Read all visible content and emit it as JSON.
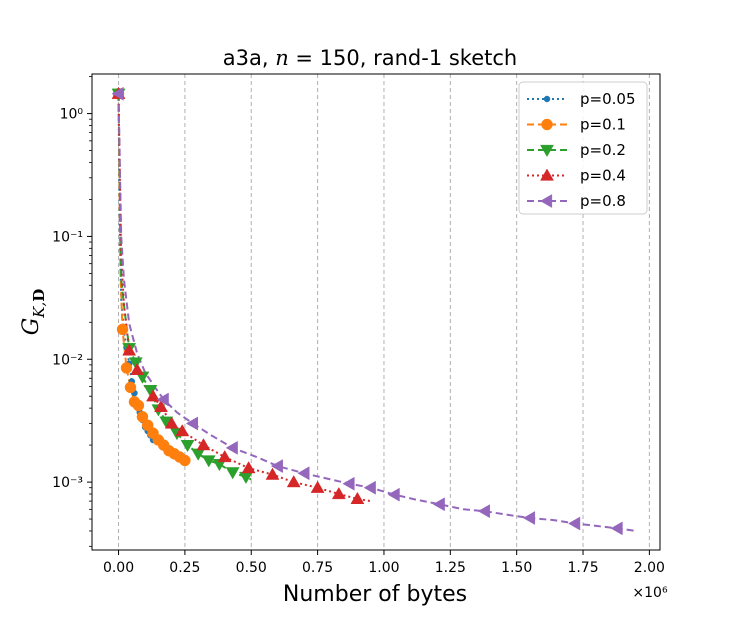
{
  "chart_data": {
    "type": "line",
    "title": "a3a, n = 150, rand-1 sketch",
    "title_parts": {
      "prefix": "a3a, ",
      "var": "n",
      "suffix": " = 150, rand-1 sketch"
    },
    "xlabel": "Number of bytes",
    "x_offset_text": "×10⁶",
    "ylabel": "G_{K,D}",
    "ylabel_parts": {
      "main": "G",
      "sub_k": "K,",
      "sub_d": "D"
    },
    "xscale": "linear",
    "yscale": "log",
    "xlim": [
      -0.1,
      2.04
    ],
    "ylim": [
      0.00028,
      2.1
    ],
    "xticks": [
      0.0,
      0.25,
      0.5,
      0.75,
      1.0,
      1.25,
      1.5,
      1.75,
      2.0
    ],
    "xtick_labels": [
      "0.00",
      "0.25",
      "0.50",
      "0.75",
      "1.00",
      "1.25",
      "1.50",
      "1.75",
      "2.00"
    ],
    "yticks": [
      0.001,
      0.01,
      0.1,
      1
    ],
    "ytick_labels": [
      "10⁻³",
      "10⁻²",
      "10⁻¹",
      "10⁰"
    ],
    "grid": "x-vertical-dashed",
    "legend_position": "top-right",
    "series": [
      {
        "name": "p=0.05",
        "color": "#1f77b4",
        "linestyle": "dotted",
        "marker": "circle-small",
        "x": [
          0,
          0.005,
          0.01,
          0.02,
          0.03,
          0.04,
          0.05,
          0.06,
          0.07,
          0.08,
          0.09,
          0.1,
          0.11,
          0.12,
          0.13
        ],
        "y": [
          1.45,
          0.09,
          0.031,
          0.017,
          0.0125,
          0.0092,
          0.0066,
          0.0053,
          0.0044,
          0.0037,
          0.0032,
          0.0028,
          0.0026,
          0.0024,
          0.0022
        ]
      },
      {
        "name": "p=0.1",
        "color": "#ff7f0e",
        "linestyle": "dashed",
        "marker": "circle",
        "x": [
          0,
          0.0075,
          0.015,
          0.03,
          0.045,
          0.06,
          0.075,
          0.09,
          0.11,
          0.13,
          0.15,
          0.17,
          0.19,
          0.21,
          0.23,
          0.25
        ],
        "y": [
          1.45,
          0.05,
          0.0175,
          0.0085,
          0.0059,
          0.0045,
          0.0042,
          0.0034,
          0.0029,
          0.0025,
          0.0022,
          0.002,
          0.0018,
          0.0017,
          0.0016,
          0.0015
        ]
      },
      {
        "name": "p=0.2",
        "color": "#2ca02c",
        "linestyle": "dashed",
        "marker": "triangle-down",
        "x": [
          0,
          0.01,
          0.02,
          0.04,
          0.065,
          0.09,
          0.12,
          0.15,
          0.18,
          0.22,
          0.26,
          0.3,
          0.34,
          0.38,
          0.43,
          0.48,
          0.5
        ],
        "y": [
          1.45,
          0.045,
          0.028,
          0.0123,
          0.0094,
          0.0072,
          0.0056,
          0.0039,
          0.0031,
          0.0025,
          0.002,
          0.0017,
          0.0015,
          0.0014,
          0.0012,
          0.0011,
          0.00105
        ]
      },
      {
        "name": "p=0.4",
        "color": "#d62728",
        "linestyle": "dotted",
        "marker": "triangle-up",
        "x": [
          0,
          0.01,
          0.02,
          0.04,
          0.07,
          0.1,
          0.13,
          0.16,
          0.2,
          0.24,
          0.32,
          0.4,
          0.49,
          0.58,
          0.66,
          0.75,
          0.83,
          0.9,
          0.95
        ],
        "y": [
          1.45,
          0.07,
          0.028,
          0.0118,
          0.0082,
          0.006,
          0.005,
          0.0041,
          0.003,
          0.0026,
          0.002,
          0.0016,
          0.0013,
          0.00115,
          0.001,
          0.0009,
          0.0008,
          0.00073,
          0.0007
        ]
      },
      {
        "name": "p=0.8",
        "color": "#9467bd",
        "linestyle": "dashed",
        "marker": "triangle-left",
        "x": [
          0,
          0.01,
          0.02,
          0.04,
          0.07,
          0.1,
          0.14,
          0.17,
          0.22,
          0.28,
          0.35,
          0.43,
          0.52,
          0.6,
          0.7,
          0.8,
          0.87,
          0.95,
          1.04,
          1.12,
          1.21,
          1.3,
          1.38,
          1.47,
          1.55,
          1.64,
          1.72,
          1.8,
          1.88,
          1.95
        ],
        "y": [
          1.45,
          0.1,
          0.045,
          0.0195,
          0.0112,
          0.0078,
          0.0058,
          0.0047,
          0.0037,
          0.003,
          0.0024,
          0.0019,
          0.0016,
          0.00135,
          0.00118,
          0.00105,
          0.00097,
          0.0009,
          0.00079,
          0.00072,
          0.00066,
          0.0006,
          0.00058,
          0.00054,
          0.00051,
          0.00049,
          0.00046,
          0.00044,
          0.00042,
          0.0004
        ]
      }
    ],
    "marker_every": {
      "p=0.05": [
        0,
        3,
        4,
        5,
        6,
        7,
        8,
        9,
        10,
        11,
        12,
        13,
        14
      ],
      "p=0.1": [
        0,
        2,
        3,
        4,
        5,
        6,
        7,
        8,
        9,
        10,
        11,
        12,
        13,
        14,
        15
      ],
      "p=0.2": [
        0,
        3,
        4,
        5,
        6,
        7,
        8,
        9,
        10,
        11,
        12,
        13,
        14,
        15
      ],
      "p=0.4": [
        0,
        3,
        4,
        6,
        7,
        8,
        9,
        10,
        11,
        12,
        13,
        14,
        15,
        16,
        17
      ],
      "p=0.8": [
        0,
        7,
        9,
        11,
        13,
        14,
        16,
        17,
        18,
        20,
        22,
        24,
        26,
        28
      ]
    }
  }
}
